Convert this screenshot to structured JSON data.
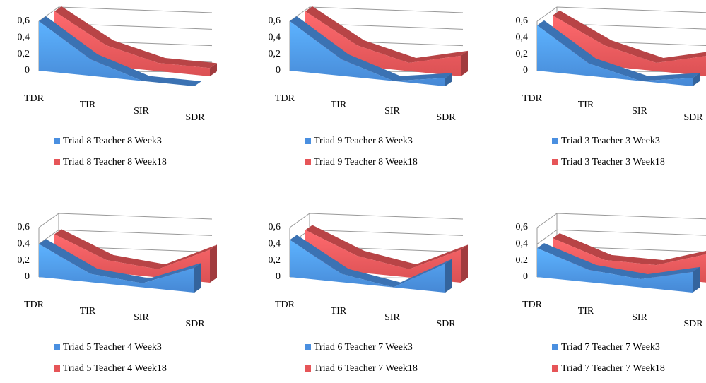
{
  "chart_data": [
    {
      "type": "area3d",
      "categories": [
        "TDR",
        "TIR",
        "SIR",
        "SDR"
      ],
      "ylim": [
        0,
        0.6
      ],
      "yticks": [
        0,
        {
          "value": 0.2,
          "label": "0,2"
        },
        {
          "value": 0.4,
          "label": "0,4"
        },
        {
          "value": 0.6,
          "label": "0,6"
        }
      ],
      "grid": true,
      "legend": "bottom",
      "series": [
        {
          "name": "Triad 8 Teacher 8 Week3",
          "color": "#4a8fe0",
          "values": [
            0.6,
            0.2,
            0.0,
            0.0
          ]
        },
        {
          "name": "Triad 8 Teacher 8 Week18",
          "color": "#e65558",
          "values": [
            0.6,
            0.25,
            0.1,
            0.1
          ]
        }
      ]
    },
    {
      "type": "area3d",
      "categories": [
        "TDR",
        "TIR",
        "SIR",
        "SDR"
      ],
      "ylim": [
        0,
        0.6
      ],
      "yticks": [
        0,
        {
          "value": 0.2,
          "label": "0,2"
        },
        {
          "value": 0.4,
          "label": "0,4"
        },
        {
          "value": 0.6,
          "label": "0,6"
        }
      ],
      "grid": true,
      "legend": "bottom",
      "series": [
        {
          "name": "Triad 9 Teacher 8 Week3",
          "color": "#4a8fe0",
          "values": [
            0.6,
            0.2,
            0.0,
            0.1
          ]
        },
        {
          "name": "Triad 9 Teacher 8 Week18",
          "color": "#e65558",
          "values": [
            0.6,
            0.25,
            0.1,
            0.25
          ]
        }
      ]
    },
    {
      "type": "area3d",
      "categories": [
        "TDR",
        "TIR",
        "SIR",
        "SDR"
      ],
      "ylim": [
        0,
        0.6
      ],
      "yticks": [
        0,
        {
          "value": 0.2,
          "label": "0,2"
        },
        {
          "value": 0.4,
          "label": "0,4"
        },
        {
          "value": 0.6,
          "label": "0,6"
        }
      ],
      "grid": true,
      "legend": "bottom",
      "series": [
        {
          "name": "Triad 3 Teacher 3 Week3",
          "color": "#4a8fe0",
          "values": [
            0.55,
            0.15,
            0.0,
            0.1
          ]
        },
        {
          "name": "Triad 3 Teacher 3 Week18",
          "color": "#e65558",
          "values": [
            0.55,
            0.25,
            0.1,
            0.25
          ]
        }
      ]
    },
    {
      "type": "area3d",
      "categories": [
        "TDR",
        "TIR",
        "SIR",
        "SDR"
      ],
      "ylim": [
        0,
        0.6
      ],
      "yticks": [
        0,
        {
          "value": 0.2,
          "label": "0,2"
        },
        {
          "value": 0.4,
          "label": "0,4"
        },
        {
          "value": 0.6,
          "label": "0,6"
        }
      ],
      "grid": true,
      "legend": "bottom",
      "series": [
        {
          "name": "Triad 5 Teacher 4 Week3",
          "color": "#4a8fe0",
          "values": [
            0.4,
            0.1,
            0.05,
            0.3
          ]
        },
        {
          "name": "Triad 5 Teacher 4 Week18",
          "color": "#e65558",
          "values": [
            0.4,
            0.15,
            0.1,
            0.4
          ]
        }
      ]
    },
    {
      "type": "area3d",
      "categories": [
        "TDR",
        "TIR",
        "SIR",
        "SDR"
      ],
      "ylim": [
        0,
        0.6
      ],
      "yticks": [
        0,
        {
          "value": 0.2,
          "label": "0,2"
        },
        {
          "value": 0.4,
          "label": "0,4"
        },
        {
          "value": 0.6,
          "label": "0,6"
        }
      ],
      "grid": true,
      "legend": "bottom",
      "series": [
        {
          "name": "Triad 6 Teacher 7 Week3",
          "color": "#4a8fe0",
          "values": [
            0.45,
            0.1,
            0.0,
            0.35
          ]
        },
        {
          "name": "Triad 6 Teacher 7 Week18",
          "color": "#e65558",
          "values": [
            0.45,
            0.2,
            0.1,
            0.4
          ]
        }
      ]
    },
    {
      "type": "area3d",
      "categories": [
        "TDR",
        "TIR",
        "SIR",
        "SDR"
      ],
      "ylim": [
        0,
        0.6
      ],
      "yticks": [
        0,
        {
          "value": 0.2,
          "label": "0,2"
        },
        {
          "value": 0.4,
          "label": "0,4"
        },
        {
          "value": 0.6,
          "label": "0,6"
        }
      ],
      "grid": true,
      "legend": "bottom",
      "series": [
        {
          "name": "Triad 7 Teacher 7 Week3",
          "color": "#4a8fe0",
          "values": [
            0.35,
            0.15,
            0.1,
            0.25
          ]
        },
        {
          "name": "Triad 7 Teacher 7 Week18",
          "color": "#e65558",
          "values": [
            0.35,
            0.15,
            0.15,
            0.35
          ]
        }
      ]
    }
  ]
}
